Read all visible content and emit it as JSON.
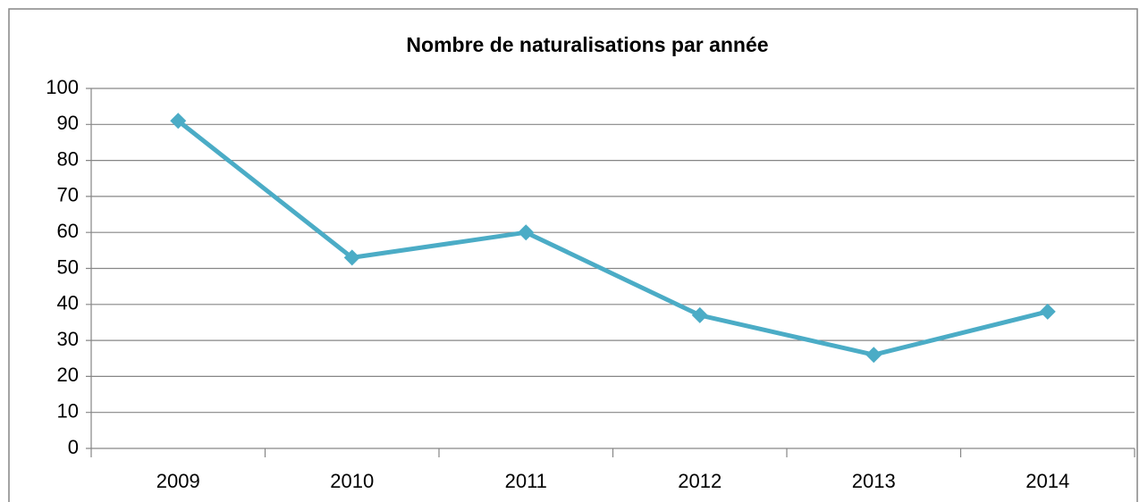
{
  "chart_data": {
    "type": "line",
    "title": "Nombre de naturalisations par année",
    "categories": [
      "2009",
      "2010",
      "2011",
      "2012",
      "2013",
      "2014"
    ],
    "values": [
      91,
      53,
      60,
      37,
      26,
      38
    ],
    "color": "#4bacc6",
    "ylim": [
      0,
      100
    ],
    "yticks": [
      0,
      10,
      20,
      30,
      40,
      50,
      60,
      70,
      80,
      90,
      100
    ],
    "grid": true
  }
}
